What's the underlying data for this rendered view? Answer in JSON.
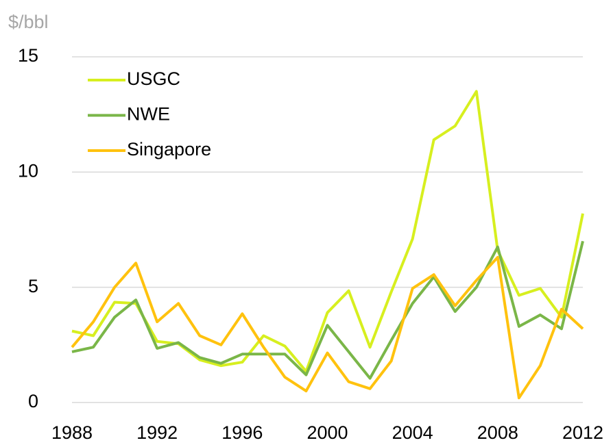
{
  "chart_data": {
    "type": "line",
    "unit_label": "$/bbl",
    "x": [
      1988,
      1989,
      1990,
      1991,
      1992,
      1993,
      1994,
      1995,
      1996,
      1997,
      1998,
      1999,
      2000,
      2001,
      2002,
      2003,
      2004,
      2005,
      2006,
      2007,
      2008,
      2009,
      2010,
      2011,
      2012
    ],
    "series": [
      {
        "name": "USGC",
        "color": "#d7ef1f",
        "values": [
          3.1,
          2.9,
          4.35,
          4.3,
          2.65,
          2.55,
          1.85,
          1.6,
          1.75,
          2.9,
          2.45,
          1.35,
          3.9,
          4.85,
          2.4,
          4.8,
          7.1,
          11.4,
          12.0,
          13.5,
          6.6,
          4.65,
          4.95,
          3.7,
          8.2
        ]
      },
      {
        "name": "NWE",
        "color": "#7ab648",
        "values": [
          2.2,
          2.4,
          3.7,
          4.45,
          2.35,
          2.6,
          1.95,
          1.7,
          2.1,
          2.1,
          2.1,
          1.2,
          3.35,
          2.2,
          1.05,
          2.7,
          4.3,
          5.45,
          3.95,
          5.0,
          6.75,
          3.3,
          3.8,
          3.2,
          7.0
        ]
      },
      {
        "name": "Singapore",
        "color": "#ffc20e",
        "values": [
          2.4,
          3.5,
          5.0,
          6.05,
          3.5,
          4.3,
          2.9,
          2.5,
          3.85,
          2.4,
          1.1,
          0.5,
          2.15,
          0.9,
          0.6,
          1.8,
          4.95,
          5.55,
          4.2,
          5.3,
          6.3,
          0.2,
          1.6,
          4.05,
          3.2
        ]
      }
    ],
    "xlim": [
      1988,
      2012
    ],
    "xticks": [
      1988,
      1992,
      1996,
      2000,
      2004,
      2008,
      2012
    ],
    "ylim": [
      0,
      15
    ],
    "yticks": [
      0,
      5,
      10,
      15
    ],
    "grid": true,
    "legend": "top-left"
  }
}
